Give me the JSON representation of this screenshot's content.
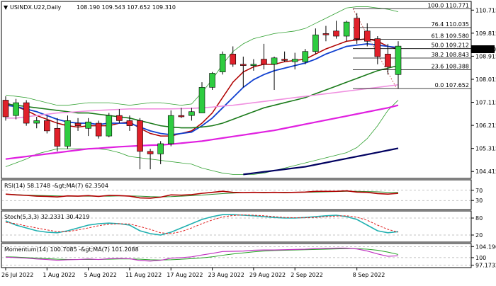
{
  "header": {
    "symbol_line": "USINDX.U22,Daily",
    "ohlc_values": "108.190 109.543 107.652 109.310"
  },
  "colors": {
    "bull_candle": "#2ecc40",
    "bear_candle": "#e0202a",
    "sma_short": "#b00000",
    "sma_mid": "#1040d0",
    "sma_long_green": "#1a7a1a",
    "sma_magenta": "#e020e0",
    "sma_pink": "#f090e0",
    "sma_navy": "#000060",
    "bollinger": "#30a030",
    "rsi_line": "#b00000",
    "rsi_ma": "#2a8a2a",
    "stoch_main": "#20b0b0",
    "stoch_signal": "#e02020",
    "momentum_line": "#c030c0",
    "momentum_ma": "#20a020",
    "fib_line": "#000000",
    "price_tag_bg": "#000000",
    "price_tag_fg": "#ffffff"
  },
  "chart_data": {
    "type": "candlestick",
    "title": "USINDX.U22,Daily",
    "x_tick_labels": [
      "26 Jul 2022",
      "1 Aug 2022",
      "5 Aug 2022",
      "11 Aug 2022",
      "17 Aug 2022",
      "23 Aug 2022",
      "29 Aug 2022",
      "2 Sep 2022",
      "8 Sep 2022"
    ],
    "y_tick_labels": [
      "110.715",
      "109.815",
      "108.915",
      "108.015",
      "107.115",
      "106.215",
      "105.315",
      "104.415"
    ],
    "ylim": [
      104.2,
      111.0
    ],
    "last_price_label": "109.310",
    "candles": [
      {
        "o": 107.2,
        "h": 107.35,
        "l": 106.4,
        "c": 106.55
      },
      {
        "o": 106.6,
        "h": 107.25,
        "l": 106.45,
        "c": 107.1
      },
      {
        "o": 107.1,
        "h": 107.2,
        "l": 106.2,
        "c": 106.3
      },
      {
        "o": 106.3,
        "h": 106.55,
        "l": 106.1,
        "c": 106.4
      },
      {
        "o": 106.4,
        "h": 106.6,
        "l": 105.9,
        "c": 106.0
      },
      {
        "o": 106.1,
        "h": 106.5,
        "l": 105.2,
        "c": 105.4
      },
      {
        "o": 105.4,
        "h": 106.6,
        "l": 105.3,
        "c": 106.4
      },
      {
        "o": 106.3,
        "h": 106.5,
        "l": 106.0,
        "c": 106.2
      },
      {
        "o": 106.1,
        "h": 106.5,
        "l": 105.8,
        "c": 106.35
      },
      {
        "o": 106.3,
        "h": 106.4,
        "l": 105.7,
        "c": 105.8
      },
      {
        "o": 105.8,
        "h": 106.7,
        "l": 105.75,
        "c": 106.6
      },
      {
        "o": 106.6,
        "h": 106.85,
        "l": 106.3,
        "c": 106.4
      },
      {
        "o": 106.4,
        "h": 106.6,
        "l": 106.0,
        "c": 106.2
      },
      {
        "o": 106.4,
        "h": 106.5,
        "l": 104.5,
        "c": 105.2
      },
      {
        "o": 105.2,
        "h": 105.3,
        "l": 104.5,
        "c": 105.1
      },
      {
        "o": 105.1,
        "h": 105.6,
        "l": 104.7,
        "c": 105.5
      },
      {
        "o": 105.5,
        "h": 106.8,
        "l": 105.4,
        "c": 106.6
      },
      {
        "o": 106.6,
        "h": 106.9,
        "l": 106.5,
        "c": 106.55
      },
      {
        "o": 106.6,
        "h": 106.9,
        "l": 106.4,
        "c": 106.75
      },
      {
        "o": 106.7,
        "h": 107.9,
        "l": 106.7,
        "c": 107.7
      },
      {
        "o": 107.7,
        "h": 108.3,
        "l": 107.6,
        "c": 108.25
      },
      {
        "o": 108.3,
        "h": 109.1,
        "l": 108.2,
        "c": 109.0
      },
      {
        "o": 109.0,
        "h": 109.3,
        "l": 108.5,
        "c": 108.6
      },
      {
        "o": 108.6,
        "h": 108.9,
        "l": 107.7,
        "c": 108.55
      },
      {
        "o": 108.55,
        "h": 108.8,
        "l": 108.35,
        "c": 108.6
      },
      {
        "o": 108.8,
        "h": 109.4,
        "l": 108.4,
        "c": 108.6
      },
      {
        "o": 108.6,
        "h": 108.9,
        "l": 107.6,
        "c": 108.85
      },
      {
        "o": 108.8,
        "h": 109.1,
        "l": 108.7,
        "c": 108.75
      },
      {
        "o": 108.7,
        "h": 109.05,
        "l": 108.4,
        "c": 108.8
      },
      {
        "o": 108.7,
        "h": 109.2,
        "l": 108.6,
        "c": 109.1
      },
      {
        "o": 109.1,
        "h": 110.0,
        "l": 109.0,
        "c": 109.75
      },
      {
        "o": 109.8,
        "h": 110.1,
        "l": 109.5,
        "c": 109.75
      },
      {
        "o": 109.9,
        "h": 110.3,
        "l": 109.6,
        "c": 109.7
      },
      {
        "o": 109.7,
        "h": 110.3,
        "l": 109.5,
        "c": 110.25
      },
      {
        "o": 110.4,
        "h": 110.6,
        "l": 109.4,
        "c": 109.6
      },
      {
        "o": 109.9,
        "h": 110.2,
        "l": 109.3,
        "c": 109.5
      },
      {
        "o": 109.6,
        "h": 109.7,
        "l": 108.6,
        "c": 108.9
      },
      {
        "o": 109.0,
        "h": 109.4,
        "l": 108.2,
        "c": 108.5
      },
      {
        "o": 108.2,
        "h": 109.5,
        "l": 107.65,
        "c": 109.31
      }
    ],
    "fibonacci": [
      {
        "label": "100.0 110.771",
        "value": 110.771
      },
      {
        "label": "76.4 110.035",
        "value": 110.035
      },
      {
        "label": "61.8 109.580",
        "value": 109.58
      },
      {
        "label": "50.0 109.212",
        "value": 109.212
      },
      {
        "label": "38.2 108.843",
        "value": 108.843
      },
      {
        "label": "23.6 108.388",
        "value": 108.388
      },
      {
        "label": "0.0 107.652",
        "value": 107.652
      }
    ],
    "moving_averages": [
      {
        "key": "sma_short",
        "values": [
          107.1,
          106.95,
          106.8,
          106.6,
          106.45,
          106.3,
          106.2,
          106.15,
          106.2,
          106.2,
          106.2,
          106.3,
          106.35,
          106.1,
          105.9,
          105.8,
          105.8,
          105.9,
          106.0,
          106.3,
          106.7,
          107.3,
          107.9,
          108.3,
          108.5,
          108.6,
          108.6,
          108.7,
          108.75,
          108.8,
          109.0,
          109.2,
          109.35,
          109.5,
          109.55,
          109.6,
          109.5,
          109.3,
          109.2
        ]
      },
      {
        "key": "sma_mid",
        "values": [
          107.0,
          106.95,
          106.85,
          106.75,
          106.6,
          106.45,
          106.35,
          106.3,
          106.3,
          106.25,
          106.3,
          106.3,
          106.3,
          106.15,
          106.0,
          105.9,
          105.85,
          105.9,
          105.95,
          106.2,
          106.5,
          106.9,
          107.3,
          107.7,
          108.0,
          108.2,
          108.35,
          108.45,
          108.55,
          108.65,
          108.8,
          109.0,
          109.15,
          109.3,
          109.35,
          109.4,
          109.35,
          109.3,
          109.25
        ]
      },
      {
        "key": "sma_long_green",
        "values": [
          107.05,
          107.0,
          106.95,
          106.9,
          106.85,
          106.8,
          106.75,
          106.7,
          106.7,
          106.65,
          106.6,
          106.55,
          106.5,
          106.4,
          106.3,
          106.2,
          106.15,
          106.12,
          106.12,
          106.15,
          106.2,
          106.3,
          106.45,
          106.6,
          106.75,
          106.9,
          107.0,
          107.1,
          107.2,
          107.3,
          107.45,
          107.6,
          107.75,
          107.9,
          108.05,
          108.2,
          108.35,
          108.45,
          108.55
        ]
      },
      {
        "key": "sma_pink",
        "values": [
          106.5,
          106.5,
          106.55,
          106.6,
          106.65,
          106.7,
          106.72,
          106.75,
          106.78,
          106.8,
          106.82,
          106.84,
          106.86,
          106.86,
          106.86,
          106.86,
          106.86,
          106.87,
          106.88,
          106.9,
          106.93,
          106.97,
          107.0,
          107.05,
          107.1,
          107.15,
          107.2,
          107.25,
          107.3,
          107.35,
          107.4,
          107.45,
          107.5,
          107.55,
          107.6,
          107.65,
          107.7,
          107.75,
          107.8
        ]
      },
      {
        "key": "sma_magenta",
        "values": [
          104.9,
          104.95,
          105.0,
          105.05,
          105.1,
          105.15,
          105.2,
          105.25,
          105.3,
          105.32,
          105.35,
          105.38,
          105.4,
          105.42,
          105.44,
          105.45,
          105.48,
          105.52,
          105.56,
          105.6,
          105.66,
          105.72,
          105.78,
          105.84,
          105.9,
          105.96,
          106.02,
          106.1,
          106.18,
          106.26,
          106.34,
          106.42,
          106.5,
          106.58,
          106.66,
          106.74,
          106.82,
          106.9,
          107.0
        ]
      },
      {
        "key": "sma_navy",
        "values": [
          null,
          null,
          null,
          null,
          null,
          null,
          null,
          null,
          null,
          null,
          null,
          null,
          null,
          null,
          null,
          null,
          null,
          null,
          null,
          null,
          null,
          null,
          null,
          104.3,
          104.35,
          104.4,
          104.45,
          104.5,
          104.55,
          104.6,
          104.68,
          104.76,
          104.84,
          104.92,
          105.0,
          105.08,
          105.16,
          105.24,
          105.32
        ]
      }
    ],
    "bollinger": {
      "upper": [
        107.4,
        107.35,
        107.3,
        107.2,
        107.1,
        107.0,
        107.0,
        107.05,
        107.1,
        107.1,
        107.1,
        107.05,
        107.0,
        107.05,
        107.1,
        107.1,
        107.05,
        107.0,
        107.05,
        107.5,
        108.0,
        108.6,
        109.1,
        109.4,
        109.6,
        109.7,
        109.8,
        109.85,
        109.9,
        110.0,
        110.2,
        110.4,
        110.6,
        110.8,
        110.85,
        110.85,
        110.8,
        110.75,
        110.65
      ],
      "lower": [
        104.6,
        104.75,
        104.9,
        105.1,
        105.2,
        105.3,
        105.3,
        105.3,
        105.3,
        105.3,
        105.25,
        105.15,
        105.0,
        104.95,
        104.9,
        104.85,
        104.8,
        104.75,
        104.7,
        104.55,
        104.45,
        104.35,
        104.3,
        104.3,
        104.3,
        104.35,
        104.45,
        104.55,
        104.65,
        104.75,
        104.85,
        104.95,
        105.05,
        105.15,
        105.35,
        105.7,
        106.2,
        106.8,
        107.2
      ]
    },
    "rsi": {
      "label": "RSI(14) 58.1748 -&gt;MA(7) 62.3504",
      "ticks": [
        "70",
        "30"
      ],
      "ylim": [
        0,
        100
      ],
      "line": [
        55,
        52,
        50,
        47,
        46,
        44,
        48,
        47,
        49,
        46,
        50,
        49,
        47,
        40,
        39,
        43,
        52,
        51,
        53,
        58,
        62,
        66,
        62,
        61,
        62,
        61,
        62,
        61,
        62,
        63,
        66,
        66,
        66,
        68,
        63,
        62,
        57,
        55,
        58
      ],
      "ma": [
        54,
        53,
        51,
        50,
        49,
        48,
        47,
        47,
        47,
        47,
        47,
        48,
        48,
        47,
        45,
        44,
        45,
        47,
        49,
        51,
        54,
        57,
        59,
        61,
        62,
        62,
        62,
        62,
        62,
        62,
        63,
        64,
        65,
        66,
        66,
        65,
        64,
        62,
        62
      ]
    },
    "stoch": {
      "label": "Stoch(5,3,3) 32.2331 30.4219",
      "ticks": [
        "80",
        "20"
      ],
      "ylim": [
        0,
        100
      ],
      "main": [
        70,
        55,
        45,
        35,
        30,
        28,
        35,
        45,
        55,
        60,
        62,
        60,
        55,
        35,
        25,
        20,
        30,
        45,
        60,
        75,
        85,
        92,
        92,
        90,
        88,
        85,
        82,
        80,
        80,
        82,
        85,
        88,
        90,
        85,
        75,
        55,
        35,
        28,
        32
      ],
      "signal": [
        65,
        60,
        52,
        45,
        38,
        32,
        32,
        38,
        45,
        53,
        58,
        60,
        59,
        50,
        40,
        28,
        25,
        32,
        45,
        60,
        73,
        84,
        89,
        91,
        90,
        88,
        85,
        82,
        81,
        81,
        82,
        85,
        87,
        88,
        83,
        72,
        55,
        40,
        30
      ]
    },
    "momentum": {
      "label": "Momentum(14) 100.7085 -&gt;MA(7) 101.2088",
      "ticks": [
        "104.1903",
        "100",
        "97.1732"
      ],
      "ylim": [
        96.5,
        104.8
      ],
      "line": [
        100.2,
        100.0,
        99.8,
        99.5,
        99.3,
        99.0,
        99.2,
        99.3,
        99.5,
        99.3,
        99.6,
        99.7,
        99.6,
        98.9,
        98.7,
        99.0,
        99.8,
        100.0,
        100.3,
        101.0,
        101.6,
        102.3,
        102.4,
        102.5,
        102.8,
        102.9,
        102.9,
        103.0,
        103.1,
        103.2,
        103.4,
        103.5,
        103.6,
        103.6,
        103.3,
        102.5,
        101.4,
        100.5,
        100.7
      ],
      "ma": [
        100.3,
        100.2,
        100.0,
        99.8,
        99.6,
        99.4,
        99.3,
        99.3,
        99.3,
        99.3,
        99.4,
        99.5,
        99.5,
        99.4,
        99.2,
        99.1,
        99.2,
        99.4,
        99.6,
        99.9,
        100.3,
        100.9,
        101.4,
        101.8,
        102.2,
        102.5,
        102.7,
        102.8,
        102.9,
        103.0,
        103.1,
        103.2,
        103.3,
        103.4,
        103.4,
        103.2,
        102.8,
        102.1,
        101.2
      ]
    }
  }
}
